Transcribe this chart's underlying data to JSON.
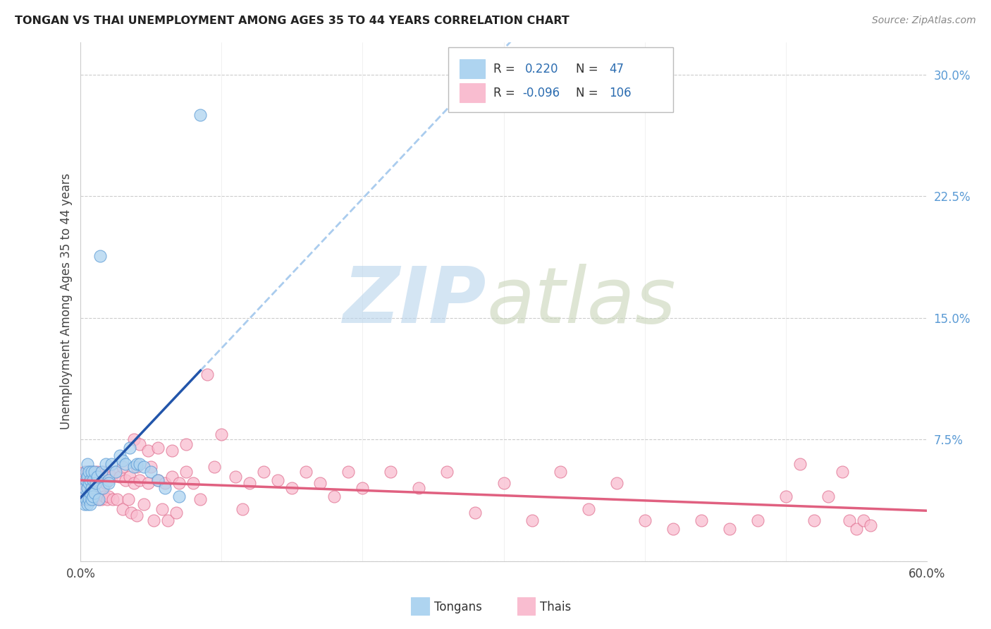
{
  "title": "TONGAN VS THAI UNEMPLOYMENT AMONG AGES 35 TO 44 YEARS CORRELATION CHART",
  "source": "Source: ZipAtlas.com",
  "ylabel": "Unemployment Among Ages 35 to 44 years",
  "xlim": [
    0.0,
    0.6
  ],
  "ylim": [
    0.0,
    0.32
  ],
  "xtick_positions": [
    0.0,
    0.1,
    0.2,
    0.3,
    0.4,
    0.5,
    0.6
  ],
  "xticklabels": [
    "0.0%",
    "",
    "",
    "",
    "",
    "",
    "60.0%"
  ],
  "ytick_positions": [
    0.0,
    0.075,
    0.15,
    0.225,
    0.3
  ],
  "yticklabels_right": [
    "",
    "7.5%",
    "15.0%",
    "22.5%",
    "30.0%"
  ],
  "legend_r_tongan": "0.220",
  "legend_n_tongan": "47",
  "legend_r_thai": "-0.096",
  "legend_n_thai": "106",
  "tongan_fill_color": "#AED4F0",
  "thai_fill_color": "#F9BDD0",
  "tongan_edge_color": "#5B9BD5",
  "thai_edge_color": "#E07090",
  "tongan_line_color": "#2255AA",
  "thai_line_color": "#E06080",
  "dashed_line_color": "#AACCEE",
  "right_axis_color": "#5B9BD5",
  "background_color": "#FFFFFF",
  "grid_color": "#CCCCCC",
  "tongan_x": [
    0.003,
    0.003,
    0.003,
    0.004,
    0.004,
    0.004,
    0.005,
    0.005,
    0.005,
    0.005,
    0.006,
    0.006,
    0.006,
    0.007,
    0.007,
    0.007,
    0.008,
    0.008,
    0.008,
    0.009,
    0.009,
    0.01,
    0.01,
    0.011,
    0.012,
    0.013,
    0.014,
    0.015,
    0.016,
    0.018,
    0.02,
    0.02,
    0.022,
    0.025,
    0.028,
    0.03,
    0.032,
    0.035,
    0.038,
    0.04,
    0.042,
    0.045,
    0.05,
    0.055,
    0.06,
    0.07,
    0.085
  ],
  "tongan_y": [
    0.04,
    0.035,
    0.045,
    0.05,
    0.038,
    0.055,
    0.045,
    0.052,
    0.035,
    0.06,
    0.048,
    0.038,
    0.055,
    0.042,
    0.05,
    0.035,
    0.055,
    0.045,
    0.038,
    0.05,
    0.04,
    0.055,
    0.042,
    0.048,
    0.052,
    0.038,
    0.188,
    0.055,
    0.045,
    0.06,
    0.05,
    0.048,
    0.06,
    0.055,
    0.065,
    0.062,
    0.06,
    0.07,
    0.058,
    0.06,
    0.06,
    0.058,
    0.055,
    0.05,
    0.045,
    0.04,
    0.275
  ],
  "thai_x": [
    0.0,
    0.001,
    0.001,
    0.002,
    0.002,
    0.003,
    0.003,
    0.004,
    0.004,
    0.005,
    0.005,
    0.005,
    0.006,
    0.006,
    0.007,
    0.007,
    0.008,
    0.008,
    0.009,
    0.009,
    0.01,
    0.01,
    0.011,
    0.012,
    0.013,
    0.014,
    0.015,
    0.015,
    0.016,
    0.017,
    0.018,
    0.019,
    0.02,
    0.02,
    0.022,
    0.023,
    0.025,
    0.026,
    0.028,
    0.03,
    0.03,
    0.032,
    0.034,
    0.035,
    0.036,
    0.038,
    0.04,
    0.04,
    0.042,
    0.045,
    0.048,
    0.05,
    0.052,
    0.055,
    0.058,
    0.06,
    0.062,
    0.065,
    0.068,
    0.07,
    0.075,
    0.08,
    0.085,
    0.09,
    0.095,
    0.1,
    0.11,
    0.115,
    0.12,
    0.13,
    0.14,
    0.15,
    0.16,
    0.17,
    0.18,
    0.19,
    0.2,
    0.22,
    0.24,
    0.26,
    0.28,
    0.3,
    0.32,
    0.34,
    0.36,
    0.38,
    0.4,
    0.42,
    0.44,
    0.46,
    0.48,
    0.5,
    0.51,
    0.52,
    0.53,
    0.54,
    0.545,
    0.55,
    0.555,
    0.56,
    0.038,
    0.042,
    0.048,
    0.055,
    0.065,
    0.075
  ],
  "thai_y": [
    0.05,
    0.048,
    0.044,
    0.052,
    0.038,
    0.055,
    0.042,
    0.048,
    0.038,
    0.055,
    0.045,
    0.038,
    0.052,
    0.042,
    0.055,
    0.038,
    0.05,
    0.04,
    0.055,
    0.038,
    0.052,
    0.04,
    0.048,
    0.055,
    0.038,
    0.052,
    0.045,
    0.038,
    0.055,
    0.04,
    0.048,
    0.038,
    0.055,
    0.04,
    0.052,
    0.038,
    0.055,
    0.038,
    0.052,
    0.058,
    0.032,
    0.05,
    0.038,
    0.052,
    0.03,
    0.048,
    0.058,
    0.028,
    0.05,
    0.035,
    0.048,
    0.058,
    0.025,
    0.05,
    0.032,
    0.048,
    0.025,
    0.052,
    0.03,
    0.048,
    0.055,
    0.048,
    0.038,
    0.115,
    0.058,
    0.078,
    0.052,
    0.032,
    0.048,
    0.055,
    0.05,
    0.045,
    0.055,
    0.048,
    0.04,
    0.055,
    0.045,
    0.055,
    0.045,
    0.055,
    0.03,
    0.048,
    0.025,
    0.055,
    0.032,
    0.048,
    0.025,
    0.02,
    0.025,
    0.02,
    0.025,
    0.04,
    0.06,
    0.025,
    0.04,
    0.055,
    0.025,
    0.02,
    0.025,
    0.022,
    0.075,
    0.072,
    0.068,
    0.07,
    0.068,
    0.072
  ]
}
